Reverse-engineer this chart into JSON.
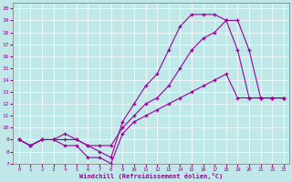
{
  "background_color": "#c0e8e8",
  "line_color": "#990099",
  "marker": "+",
  "xlim": [
    0,
    23
  ],
  "ylim": [
    7,
    20
  ],
  "xticks": [
    0,
    1,
    2,
    3,
    4,
    5,
    6,
    7,
    8,
    9,
    10,
    11,
    12,
    13,
    14,
    15,
    16,
    17,
    18,
    19,
    20,
    21,
    22,
    23
  ],
  "yticks": [
    7,
    8,
    9,
    10,
    11,
    12,
    13,
    14,
    15,
    16,
    17,
    18,
    19,
    20
  ],
  "xlabel": "Windchill (Refroidissement éolien,°C)",
  "curve1_x": [
    0,
    1,
    2,
    3,
    4,
    5,
    6,
    7,
    8,
    9,
    10,
    11,
    12,
    13,
    14,
    15,
    16,
    17,
    18,
    19,
    20,
    21,
    22,
    23
  ],
  "curve1_y": [
    9.0,
    8.5,
    9.0,
    9.0,
    8.5,
    8.5,
    7.5,
    7.5,
    7.0,
    9.5,
    10.5,
    11.0,
    11.5,
    12.0,
    12.5,
    13.0,
    13.5,
    14.0,
    14.5,
    12.5,
    12.5,
    12.5,
    12.5,
    12.5
  ],
  "curve2_x": [
    0,
    1,
    2,
    3,
    4,
    5,
    6,
    7,
    8,
    9,
    10,
    11,
    12,
    13,
    14,
    15,
    16,
    17,
    18,
    19,
    20,
    21,
    22,
    23
  ],
  "curve2_y": [
    9.0,
    8.5,
    9.0,
    9.0,
    9.5,
    9.0,
    8.5,
    8.5,
    8.5,
    10.0,
    11.0,
    12.0,
    12.5,
    13.5,
    15.0,
    16.5,
    17.5,
    18.0,
    19.0,
    16.5,
    12.5,
    12.5,
    12.5,
    12.5
  ],
  "curve3_x": [
    0,
    1,
    2,
    3,
    4,
    5,
    6,
    7,
    8,
    9,
    10,
    11,
    12,
    13,
    14,
    15,
    16,
    17,
    18,
    19,
    20,
    21,
    22,
    23
  ],
  "curve3_y": [
    9.0,
    8.5,
    9.0,
    9.0,
    9.0,
    9.0,
    8.5,
    8.0,
    7.5,
    10.5,
    12.0,
    13.5,
    14.5,
    16.5,
    18.5,
    19.5,
    19.5,
    19.5,
    19.0,
    19.0,
    16.5,
    12.5,
    12.5,
    12.5
  ]
}
